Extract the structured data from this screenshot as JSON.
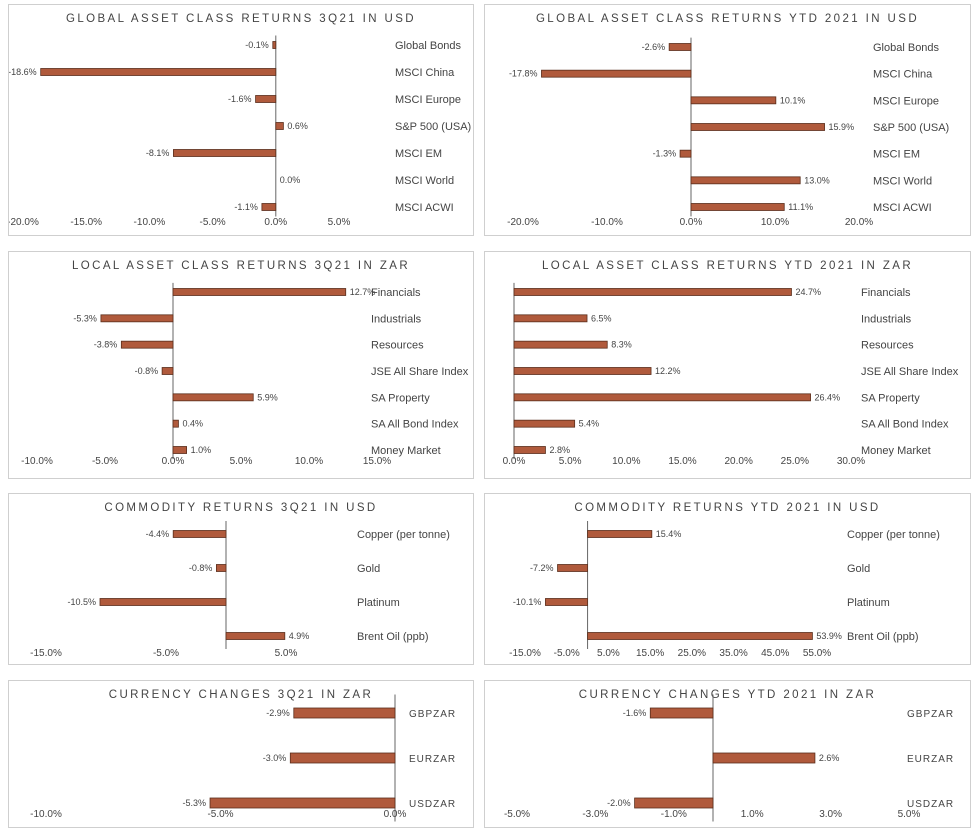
{
  "colors": {
    "bar": "#b05a3c",
    "bar_stroke": "#5a2e1c",
    "axis": "#666666"
  },
  "chart_data": [
    {
      "type": "bar",
      "title": "GLOBAL ASSET CLASS RETURNS 3Q21 IN USD",
      "categories": [
        "Global Bonds",
        "MSCI China",
        "MSCI Europe",
        "S&P 500 (USA)",
        "MSCI EM",
        "MSCI World",
        "MSCI ACWI"
      ],
      "values": [
        -0.1,
        -18.6,
        -1.6,
        0.6,
        -8.1,
        0.0,
        -1.1
      ],
      "value_labels": [
        "-0.1%",
        "-18.6%",
        "-1.6%",
        "0.6%",
        "-8.1%",
        "0.0%",
        "-1.1%"
      ],
      "xlim": [
        -20,
        5
      ],
      "ticks": [
        -20,
        -15,
        -10,
        -5,
        0,
        5
      ],
      "tick_labels": [
        "-20.0%",
        "-15.0%",
        "-10.0%",
        "-5.0%",
        "0.0%",
        "5.0%"
      ]
    },
    {
      "type": "bar",
      "title": "GLOBAL ASSET CLASS RETURNS YTD 2021 IN USD",
      "categories": [
        "Global Bonds",
        "MSCI China",
        "MSCI Europe",
        "S&P 500 (USA)",
        "MSCI EM",
        "MSCI World",
        "MSCI ACWI"
      ],
      "values": [
        -2.6,
        -17.8,
        10.1,
        15.9,
        -1.3,
        13.0,
        11.1
      ],
      "value_labels": [
        "-2.6%",
        "-17.8%",
        "10.1%",
        "15.9%",
        "-1.3%",
        "13.0%",
        "11.1%"
      ],
      "xlim": [
        -20,
        20
      ],
      "ticks": [
        -20,
        -10,
        0,
        10,
        20
      ],
      "tick_labels": [
        "-20.0%",
        "-10.0%",
        "0.0%",
        "10.0%",
        "20.0%"
      ]
    },
    {
      "type": "bar",
      "title": "LOCAL ASSET CLASS RETURNS 3Q21 IN ZAR",
      "categories": [
        "Financials",
        "Industrials",
        "Resources",
        "JSE All Share Index",
        "SA Property",
        "SA All Bond Index",
        "Money Market"
      ],
      "values": [
        12.7,
        -5.3,
        -3.8,
        -0.8,
        5.9,
        0.4,
        1.0
      ],
      "value_labels": [
        "12.7%",
        "-5.3%",
        "-3.8%",
        "-0.8%",
        "5.9%",
        "0.4%",
        "1.0%"
      ],
      "xlim": [
        -10,
        15
      ],
      "ticks": [
        -10,
        -5,
        0,
        5,
        10,
        15
      ],
      "tick_labels": [
        "-10.0%",
        "-5.0%",
        "0.0%",
        "5.0%",
        "10.0%",
        "15.0%"
      ]
    },
    {
      "type": "bar",
      "title": "LOCAL ASSET CLASS RETURNS YTD 2021 IN ZAR",
      "categories": [
        "Financials",
        "Industrials",
        "Resources",
        "JSE All Share Index",
        "SA Property",
        "SA All Bond Index",
        "Money Market"
      ],
      "values": [
        24.7,
        6.5,
        8.3,
        12.2,
        26.4,
        5.4,
        2.8
      ],
      "value_labels": [
        "24.7%",
        "6.5%",
        "8.3%",
        "12.2%",
        "26.4%",
        "5.4%",
        "2.8%"
      ],
      "xlim": [
        0,
        30
      ],
      "ticks": [
        0,
        5,
        10,
        15,
        20,
        25,
        30
      ],
      "tick_labels": [
        "0.0%",
        "5.0%",
        "10.0%",
        "15.0%",
        "20.0%",
        "25.0%",
        "30.0%"
      ]
    },
    {
      "type": "bar",
      "title": "COMMODITY RETURNS 3Q21 IN USD",
      "categories": [
        "Copper (per tonne)",
        "Gold",
        "Platinum",
        "Brent Oil (ppb)"
      ],
      "values": [
        -4.4,
        -0.8,
        -10.5,
        4.9
      ],
      "value_labels": [
        "-4.4%",
        "-0.8%",
        "-10.5%",
        "4.9%"
      ],
      "xlim": [
        -15,
        5
      ],
      "ticks": [
        -15,
        -5,
        5
      ],
      "tick_labels": [
        "-15.0%",
        "-5.0%",
        "5.0%"
      ]
    },
    {
      "type": "bar",
      "title": "COMMODITY RETURNS YTD 2021 IN USD",
      "categories": [
        "Copper (per tonne)",
        "Gold",
        "Platinum",
        "Brent Oil (ppb)"
      ],
      "values": [
        15.4,
        -7.2,
        -10.1,
        53.9
      ],
      "value_labels": [
        "15.4%",
        "-7.2%",
        "-10.1%",
        "53.9%"
      ],
      "xlim": [
        -15,
        55
      ],
      "ticks": [
        -15,
        -5,
        5,
        15,
        25,
        35,
        45,
        55
      ],
      "tick_labels": [
        "-15.0%",
        "-5.0%",
        "5.0%",
        "15.0%",
        "25.0%",
        "35.0%",
        "45.0%",
        "55.0%"
      ]
    },
    {
      "type": "bar",
      "title": "CURRENCY CHANGES 3Q21 IN ZAR",
      "categories": [
        "GBPZAR",
        "EURZAR",
        "USDZAR"
      ],
      "values": [
        -2.9,
        -3.0,
        -5.3
      ],
      "value_labels": [
        "-2.9%",
        "-3.0%",
        "-5.3%"
      ],
      "xlim": [
        -10,
        0
      ],
      "ticks": [
        -10,
        -5,
        0
      ],
      "tick_labels": [
        "-10.0%",
        "-5.0%",
        "0.0%"
      ]
    },
    {
      "type": "bar",
      "title": "CURRENCY CHANGES YTD 2021 IN ZAR",
      "categories": [
        "GBPZAR",
        "EURZAR",
        "USDZAR"
      ],
      "values": [
        -1.6,
        2.6,
        -2.0
      ],
      "value_labels": [
        "-1.6%",
        "2.6%",
        "-2.0%"
      ],
      "xlim": [
        -5,
        5
      ],
      "ticks": [
        -5,
        -3,
        -1,
        1,
        3,
        5
      ],
      "tick_labels": [
        "-5.0%",
        "-3.0%",
        "-1.0%",
        "1.0%",
        "3.0%",
        "5.0%"
      ]
    }
  ]
}
